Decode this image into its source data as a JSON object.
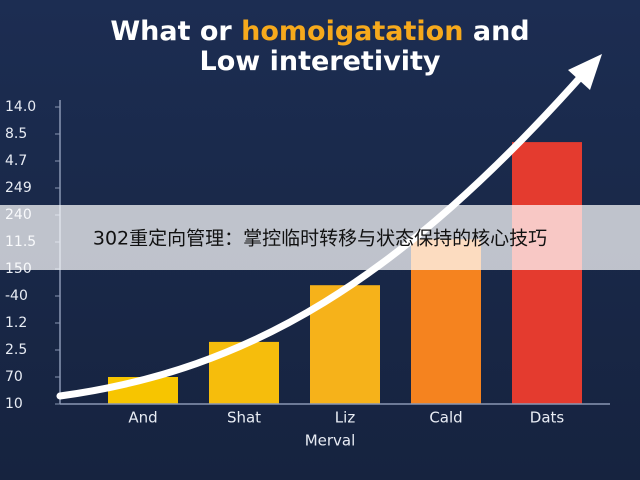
{
  "chart_data": {
    "type": "bar",
    "title": [
      [
        {
          "text": "What or ",
          "color": "#ffffff"
        },
        {
          "text": "homoigatation",
          "color": "#f6a91c"
        },
        {
          "text": " and",
          "color": "#ffffff"
        }
      ],
      [
        {
          "text": "Low interetivity",
          "color": "#ffffff"
        }
      ]
    ],
    "x_label": "Merval",
    "categories": [
      "And",
      "Shat",
      "Liz",
      "Cald",
      "Dats"
    ],
    "values": [
      1,
      2.3,
      4.4,
      6.1,
      9.7
    ],
    "colors": [
      "#f7c500",
      "#f6bd0c",
      "#f6b21a",
      "#f5831f",
      "#e43b2f"
    ],
    "ylim": [
      0,
      11
    ],
    "yticks": [
      {
        "value": 0,
        "label": "10"
      },
      {
        "value": 1,
        "label": "70"
      },
      {
        "value": 2,
        "label": "2.5"
      },
      {
        "value": 3,
        "label": "1.2"
      },
      {
        "value": 4,
        "label": "-40"
      },
      {
        "value": 5,
        "label": "150"
      },
      {
        "value": 6,
        "label": "11.5"
      },
      {
        "value": 7,
        "label": "240"
      },
      {
        "value": 8,
        "label": "249"
      },
      {
        "value": 9,
        "label": "4.7"
      },
      {
        "value": 10,
        "label": "8.5"
      },
      {
        "value": 11,
        "label": "14.0"
      }
    ]
  },
  "banner": {
    "text": "302重定向管理：掌控临时转移与状态保持的核心技巧"
  }
}
